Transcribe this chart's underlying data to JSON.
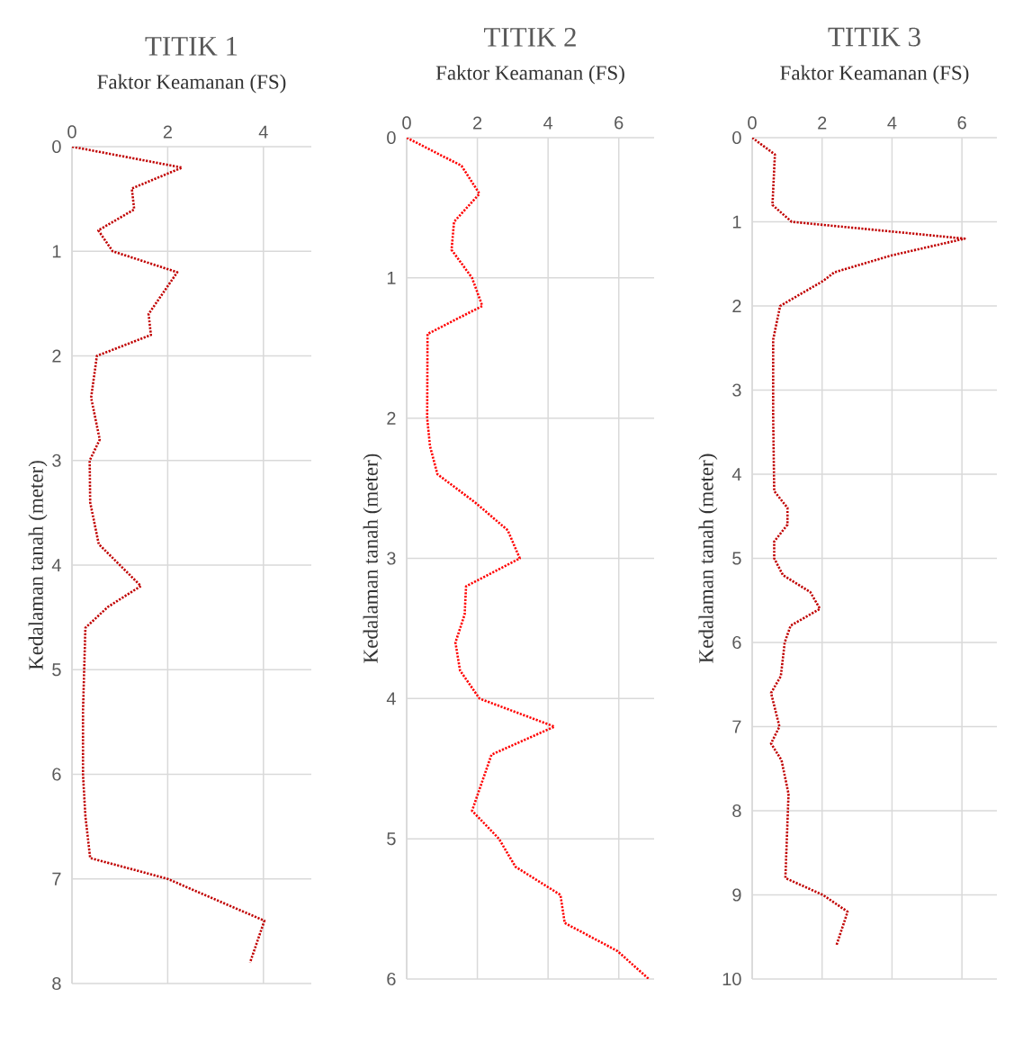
{
  "chart_data": [
    {
      "type": "line",
      "title": "TITIK 1",
      "xlabel": "Faktor Keamanan (FS)",
      "ylabel": "Kedalaman tanah (meter)",
      "xlim": [
        0,
        5
      ],
      "xticks": [
        0,
        2,
        4
      ],
      "ylim": [
        8,
        0
      ],
      "yticks": [
        0,
        1,
        2,
        3,
        4,
        5,
        6,
        7,
        8
      ],
      "grid": true,
      "line_style": "dotted",
      "series": [
        {
          "color": "#c00000",
          "x": [
            0,
            2.3,
            1.25,
            1.3,
            0.55,
            0.85,
            2.2,
            1.6,
            1.65,
            0.52,
            0.4,
            0.58,
            0.37,
            0.38,
            0.56,
            1.44,
            0.75,
            0.28,
            0.23,
            0.23,
            0.28,
            0.38,
            2.0,
            4.02,
            3.72
          ],
          "values": [
            0,
            0.2,
            0.4,
            0.6,
            0.8,
            1.0,
            1.2,
            1.6,
            1.8,
            2.0,
            2.4,
            2.8,
            3.0,
            3.4,
            3.8,
            4.2,
            4.4,
            4.6,
            5.4,
            6.0,
            6.4,
            6.8,
            7.0,
            7.4,
            7.8
          ]
        }
      ]
    },
    {
      "type": "line",
      "title": "TITIK 2",
      "xlabel": "Faktor Keamanan (FS)",
      "ylabel": "Kedalaman tanah (meter)",
      "xlim": [
        0,
        7
      ],
      "xticks": [
        0,
        2,
        4,
        6
      ],
      "ylim": [
        6,
        0
      ],
      "yticks": [
        0,
        1,
        2,
        3,
        4,
        5,
        6
      ],
      "grid": true,
      "line_style": "dotted",
      "series": [
        {
          "color": "#ff0000",
          "x": [
            0,
            1.55,
            2.06,
            1.34,
            1.27,
            1.85,
            2.14,
            0.59,
            0.58,
            0.66,
            0.87,
            1.93,
            2.86,
            3.2,
            1.68,
            1.64,
            1.38,
            1.51,
            2.06,
            4.18,
            2.4,
            1.85,
            2.61,
            3.08,
            4.35,
            4.47,
            5.96,
            6.85
          ],
          "values": [
            0,
            0.2,
            0.4,
            0.6,
            0.8,
            1.0,
            1.2,
            1.4,
            2.0,
            2.2,
            2.4,
            2.6,
            2.8,
            3.0,
            3.2,
            3.4,
            3.6,
            3.8,
            4.0,
            4.2,
            4.4,
            4.8,
            5.0,
            5.2,
            5.4,
            5.6,
            5.8,
            6.0
          ]
        }
      ]
    },
    {
      "type": "line",
      "title": "TITIK 3",
      "xlabel": "Faktor Keamanan (FS)",
      "ylabel": "Kedalaman tanah (meter)",
      "xlim": [
        0,
        7
      ],
      "xticks": [
        0,
        2,
        4,
        6
      ],
      "ylim": [
        10,
        0
      ],
      "yticks": [
        0,
        1,
        2,
        3,
        4,
        5,
        6,
        7,
        8,
        9,
        10
      ],
      "grid": true,
      "line_style": "dotted",
      "series": [
        {
          "color": "#c00000",
          "x": [
            0,
            0.65,
            0.58,
            1.13,
            6.08,
            3.98,
            2.35,
            2.04,
            0.8,
            0.6,
            0.6,
            0.63,
            1.01,
            1.01,
            0.63,
            0.63,
            0.88,
            1.66,
            1.94,
            1.1,
            0.93,
            0.82,
            0.54,
            0.78,
            0.54,
            0.84,
            1.04,
            0.95,
            2.02,
            2.73,
            2.41
          ],
          "values": [
            0,
            0.2,
            0.8,
            1.0,
            1.2,
            1.4,
            1.6,
            1.7,
            2.0,
            2.4,
            3.3,
            4.2,
            4.4,
            4.6,
            4.8,
            5.0,
            5.2,
            5.4,
            5.6,
            5.8,
            6.0,
            6.4,
            6.6,
            7.0,
            7.2,
            7.4,
            7.8,
            8.8,
            9.0,
            9.2,
            9.6
          ]
        }
      ]
    }
  ]
}
